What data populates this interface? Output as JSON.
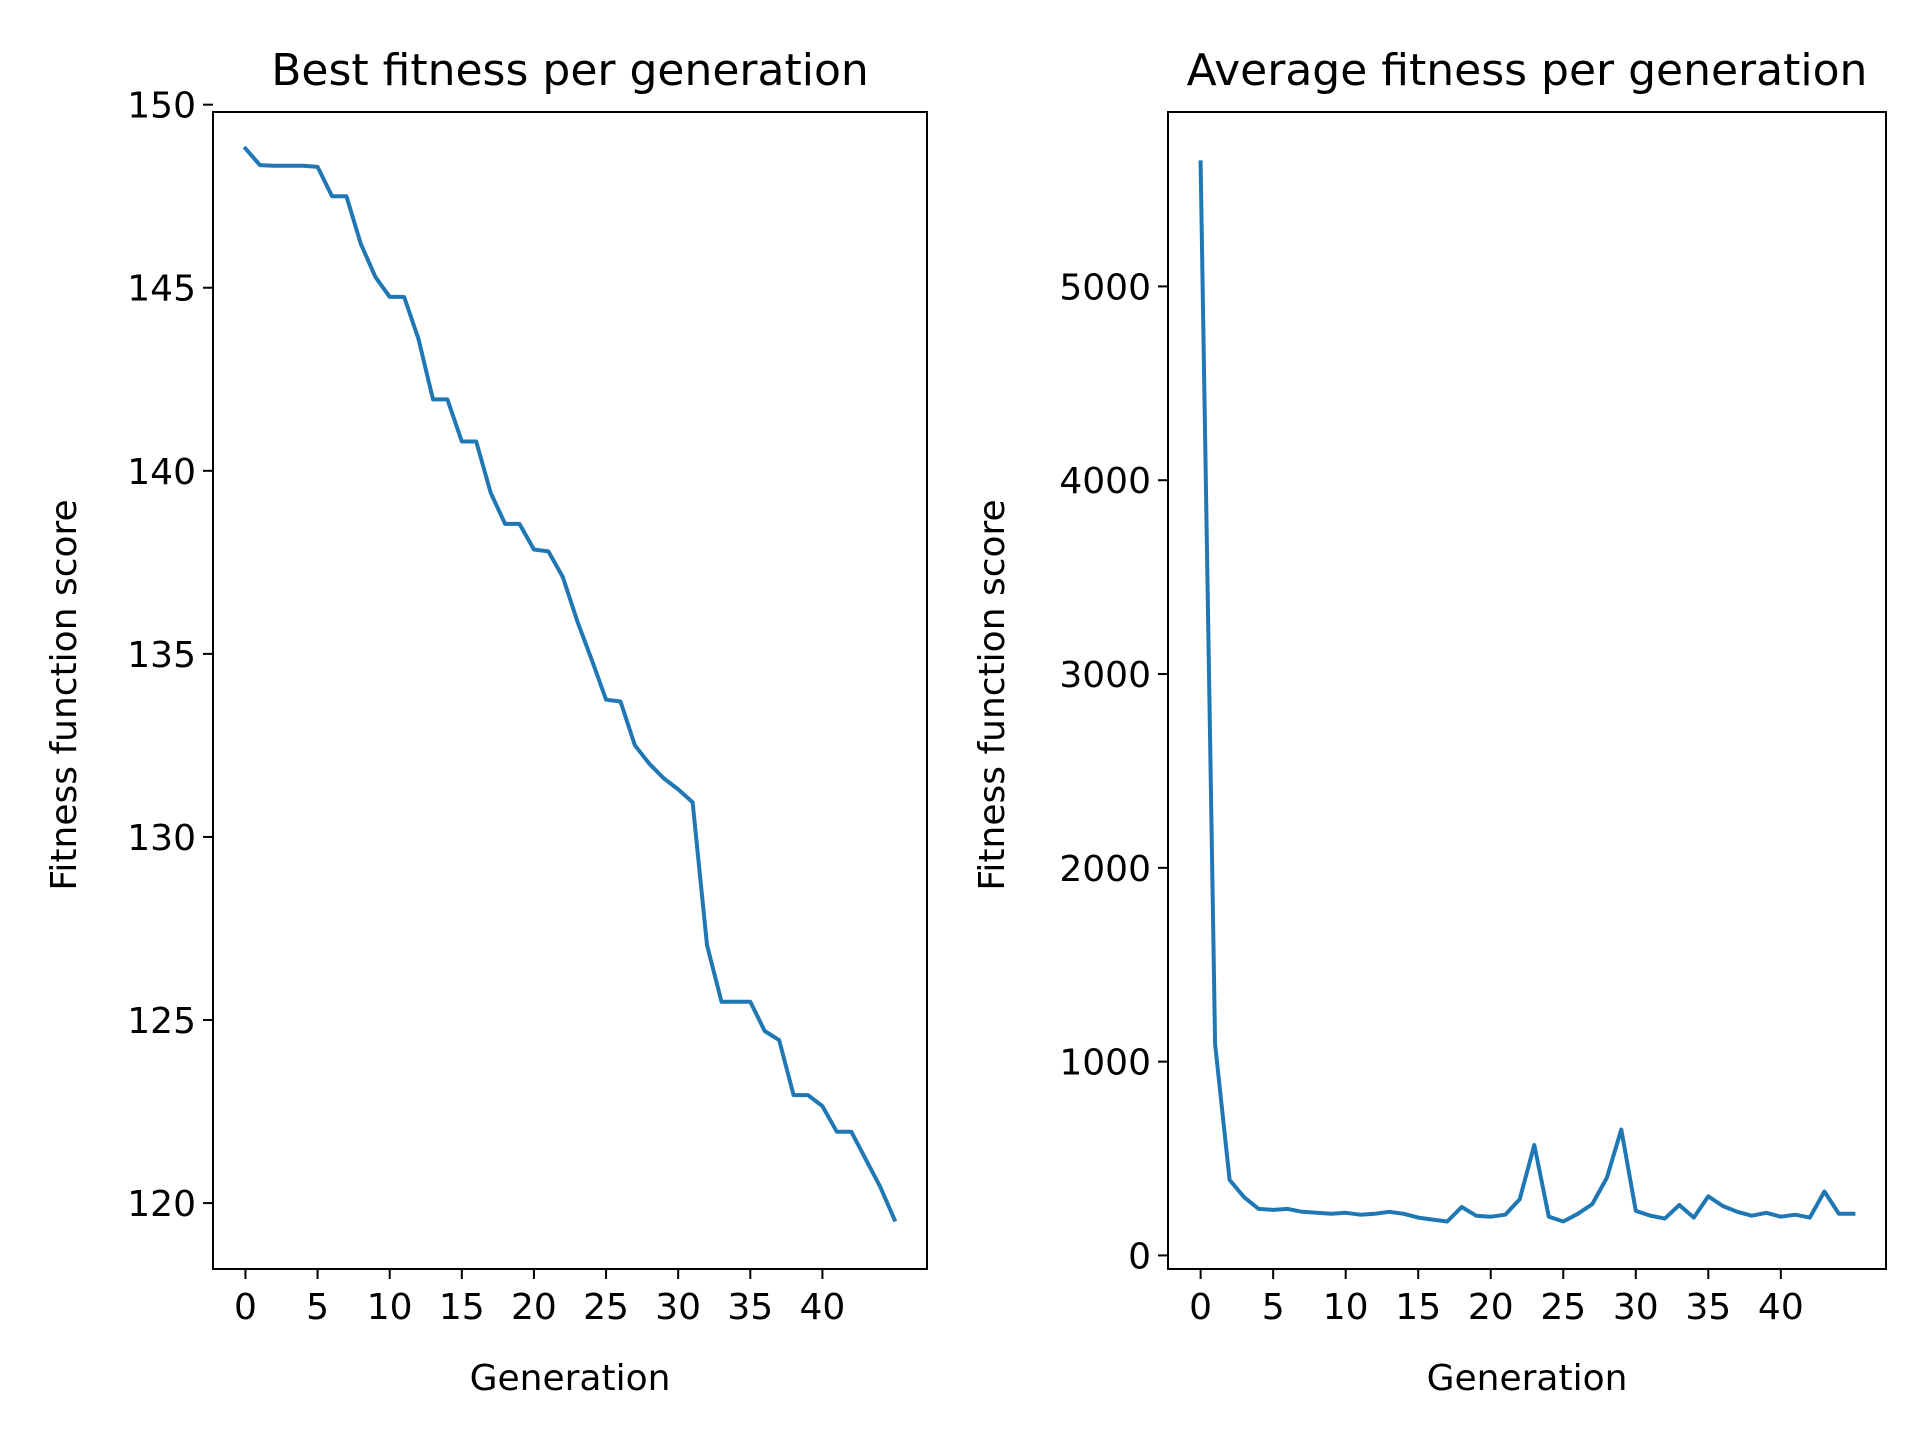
{
  "chart_data": [
    {
      "type": "line",
      "title": "Best fitness per generation",
      "xlabel": "Generation",
      "ylabel": "Fitness function score",
      "xlim": [
        -2.25,
        47.25
      ],
      "ylim": [
        118.2,
        149.8
      ],
      "xticks": [
        0,
        5,
        10,
        15,
        20,
        25,
        30,
        35,
        40
      ],
      "yticks": [
        120,
        125,
        130,
        135,
        140,
        145,
        150
      ],
      "grid": false,
      "color": "#1f77b4",
      "series": [
        {
          "x": [
            0,
            1,
            2,
            3,
            4,
            5,
            6,
            7,
            8,
            9,
            10,
            11,
            12,
            13,
            14,
            15,
            16,
            17,
            18,
            19,
            20,
            21,
            22,
            23,
            24,
            25,
            26,
            27,
            28,
            29,
            30,
            31,
            32,
            33,
            34,
            35,
            36,
            37,
            38,
            39,
            40,
            41,
            42,
            43,
            44,
            45
          ],
          "values": [
            148.8,
            148.35,
            148.33,
            148.33,
            148.33,
            148.3,
            147.5,
            147.5,
            146.2,
            145.3,
            144.75,
            144.75,
            143.6,
            141.95,
            141.95,
            140.8,
            140.8,
            139.4,
            138.55,
            138.55,
            137.85,
            137.8,
            137.1,
            135.9,
            134.85,
            133.75,
            133.7,
            132.5,
            132.0,
            131.6,
            131.3,
            130.95,
            127.05,
            125.5,
            125.5,
            125.5,
            124.7,
            124.45,
            122.95,
            122.95,
            122.65,
            121.95,
            121.95,
            121.2,
            120.45,
            119.55
          ]
        }
      ]
    },
    {
      "type": "line",
      "title": "Average fitness per generation",
      "xlabel": "Generation",
      "ylabel": "Fitness function score",
      "xlim": [
        -2.25,
        47.25
      ],
      "ylim": [
        -70,
        5900
      ],
      "xticks": [
        0,
        5,
        10,
        15,
        20,
        25,
        30,
        35,
        40
      ],
      "yticks": [
        0,
        1000,
        2000,
        3000,
        4000,
        5000
      ],
      "grid": false,
      "color": "#1f77b4",
      "series": [
        {
          "x": [
            0,
            1,
            2,
            3,
            4,
            5,
            6,
            7,
            8,
            9,
            10,
            11,
            12,
            13,
            14,
            15,
            16,
            17,
            18,
            19,
            20,
            21,
            22,
            23,
            24,
            25,
            26,
            27,
            28,
            29,
            30,
            31,
            32,
            33,
            34,
            35,
            36,
            37,
            38,
            39,
            40,
            41,
            42,
            43,
            44,
            45
          ],
          "values": [
            5640,
            1090,
            390,
            300,
            240,
            235,
            240,
            225,
            220,
            215,
            220,
            210,
            215,
            225,
            215,
            195,
            185,
            175,
            250,
            205,
            200,
            210,
            290,
            570,
            200,
            175,
            215,
            265,
            400,
            650,
            230,
            205,
            190,
            260,
            195,
            305,
            255,
            225,
            205,
            220,
            200,
            210,
            195,
            330,
            215,
            215
          ]
        }
      ]
    }
  ]
}
